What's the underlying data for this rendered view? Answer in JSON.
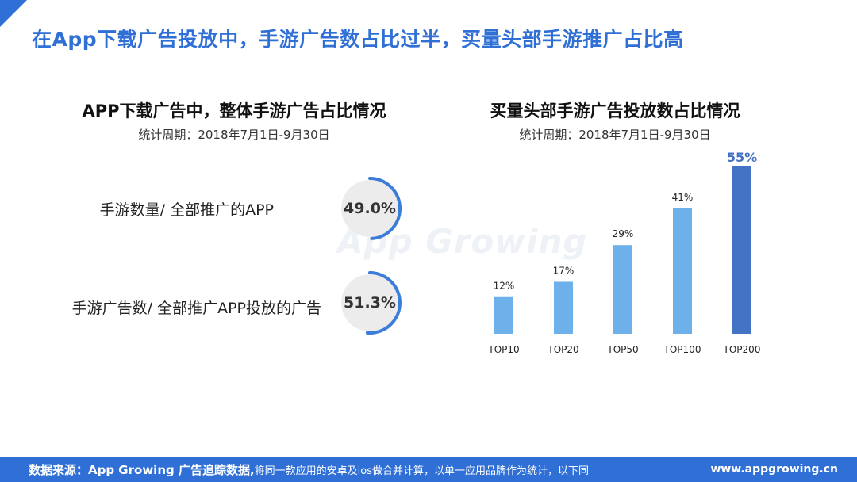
{
  "header": {
    "title": "在App下载广告投放中，手游广告数占比过半，买量头部手游推广占比高"
  },
  "left_panel": {
    "title": "APP下载广告中，整体手游广告占比情况",
    "subtitle": "统计周期：2018年7月1日-9月30日",
    "rows": [
      {
        "label": "手游数量/ 全部推广的APP",
        "value_text": "49.0%",
        "value": 49.0
      },
      {
        "label": "手游广告数/ 全部推广APP投放的广告",
        "value_text": "51.3%",
        "value": 51.3
      }
    ],
    "ring_color": "#3b7dd8"
  },
  "watermark": "App Growing",
  "chart_data": {
    "type": "bar",
    "title": "买量头部手游广告投放数占比情况",
    "subtitle": "统计周期：2018年7月1日-9月30日",
    "categories": [
      "TOP10",
      "TOP20",
      "TOP50",
      "TOP100",
      "TOP200"
    ],
    "values": [
      12,
      17,
      29,
      41,
      55
    ],
    "labels": [
      "12%",
      "17%",
      "29%",
      "41%",
      "55%"
    ],
    "ylim": [
      0,
      55
    ],
    "grid": false,
    "bar_color": "#6eb0ea",
    "highlight_color": "#4472c4",
    "highlight_index": 4
  },
  "footer": {
    "source_lead": "数据来源：App Growing 广告追踪数据,",
    "source_rest": "将同一款应用的安卓及ios做合并计算，以单一应用品牌作为统计，以下同",
    "url": "www.appgrowing.cn"
  },
  "colors": {
    "brand": "#2f6fd6",
    "text": "#222222"
  }
}
